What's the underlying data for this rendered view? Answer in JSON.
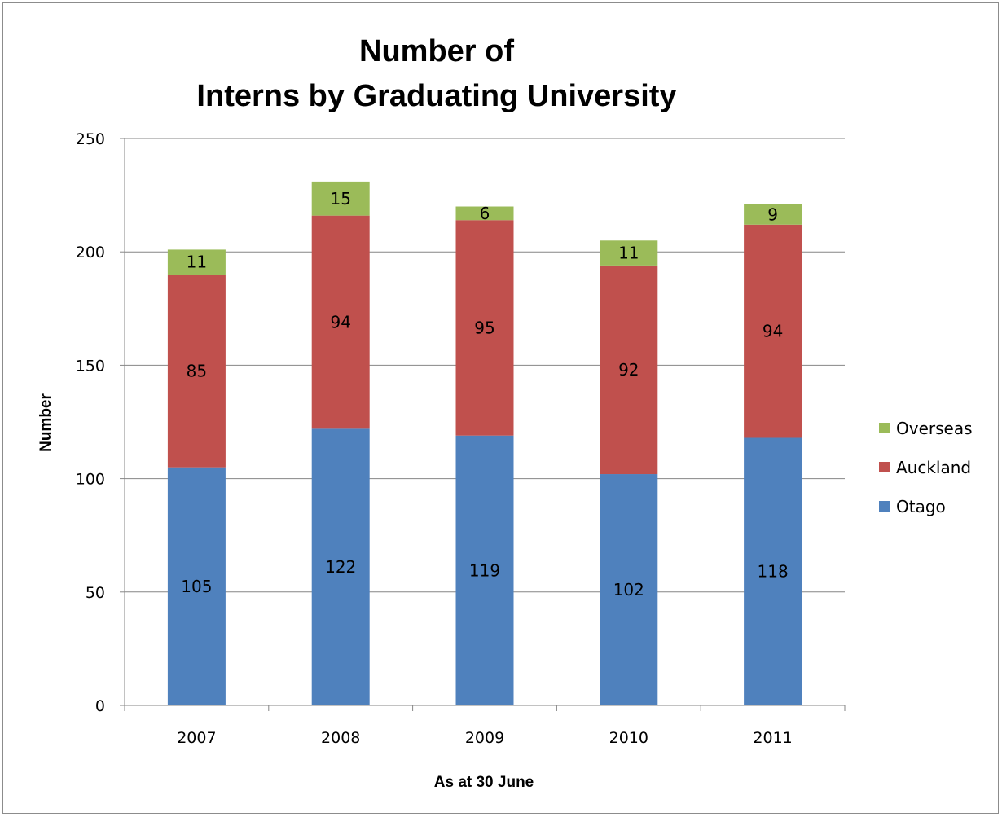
{
  "chart_data": {
    "type": "bar",
    "stacked": true,
    "title_lines": [
      "Number of",
      "Interns by Graduating University"
    ],
    "xlabel": "As at 30 June",
    "ylabel": "Number",
    "categories": [
      "2007",
      "2008",
      "2009",
      "2010",
      "2011"
    ],
    "ylim": [
      0,
      250
    ],
    "yticks": [
      0,
      50,
      100,
      150,
      200,
      250
    ],
    "grid": true,
    "legend_position": "right",
    "series": [
      {
        "name": "Otago",
        "values": [
          105,
          122,
          119,
          102,
          118
        ],
        "color": "#4f81bd"
      },
      {
        "name": "Auckland",
        "values": [
          85,
          94,
          95,
          92,
          94
        ],
        "color": "#c0504d"
      },
      {
        "name": "Overseas",
        "values": [
          11,
          15,
          6,
          11,
          9
        ],
        "color": "#9bbb59"
      }
    ]
  }
}
